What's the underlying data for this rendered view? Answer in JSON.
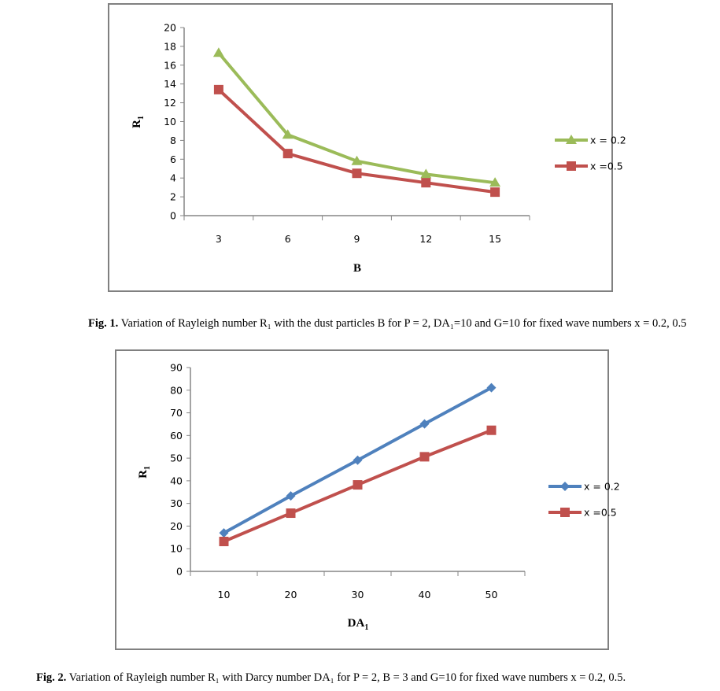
{
  "chart_data": [
    {
      "type": "line",
      "title": "",
      "xlabel": "B",
      "ylabel": "R1",
      "categories": [
        "3",
        "6",
        "9",
        "12",
        "15"
      ],
      "ylim": [
        0,
        20
      ],
      "yticks": [
        0,
        2,
        4,
        6,
        8,
        10,
        12,
        14,
        16,
        18,
        20
      ],
      "legend_position": "right",
      "series": [
        {
          "name": "x = 0.2",
          "color": "#9BBB59",
          "marker": "triangle",
          "values": [
            17.3,
            8.6,
            5.8,
            4.4,
            3.5
          ]
        },
        {
          "name": "x =0.5",
          "color": "#C0504D",
          "marker": "square",
          "values": [
            13.4,
            6.6,
            4.5,
            3.5,
            2.5
          ]
        }
      ]
    },
    {
      "type": "line",
      "title": "",
      "xlabel": "DA1",
      "ylabel": "R1",
      "categories": [
        "10",
        "20",
        "30",
        "40",
        "50"
      ],
      "ylim": [
        0,
        90
      ],
      "yticks": [
        0,
        10,
        20,
        30,
        40,
        50,
        60,
        70,
        80,
        90
      ],
      "legend_position": "right",
      "series": [
        {
          "name": "x = 0.2",
          "color": "#4F81BD",
          "marker": "diamond",
          "values": [
            17.0,
            33.3,
            49.1,
            65.1,
            81.1
          ]
        },
        {
          "name": "x =0.5",
          "color": "#C0504D",
          "marker": "square",
          "values": [
            13.2,
            25.7,
            38.2,
            50.6,
            62.3
          ]
        }
      ]
    }
  ],
  "captions": [
    {
      "label": "Fig. 1.",
      "text": " Variation of Rayleigh number R₁ with the dust particles B for P = 2, DA₁=10 and G=10 for fixed wave numbers x = 0.2, 0.5"
    },
    {
      "label": "Fig. 2.",
      "text": " Variation of Rayleigh number R₁ with Darcy number DA₁ for P = 2, B = 3 and G=10 for fixed wave numbers x = 0.2, 0.5."
    }
  ]
}
